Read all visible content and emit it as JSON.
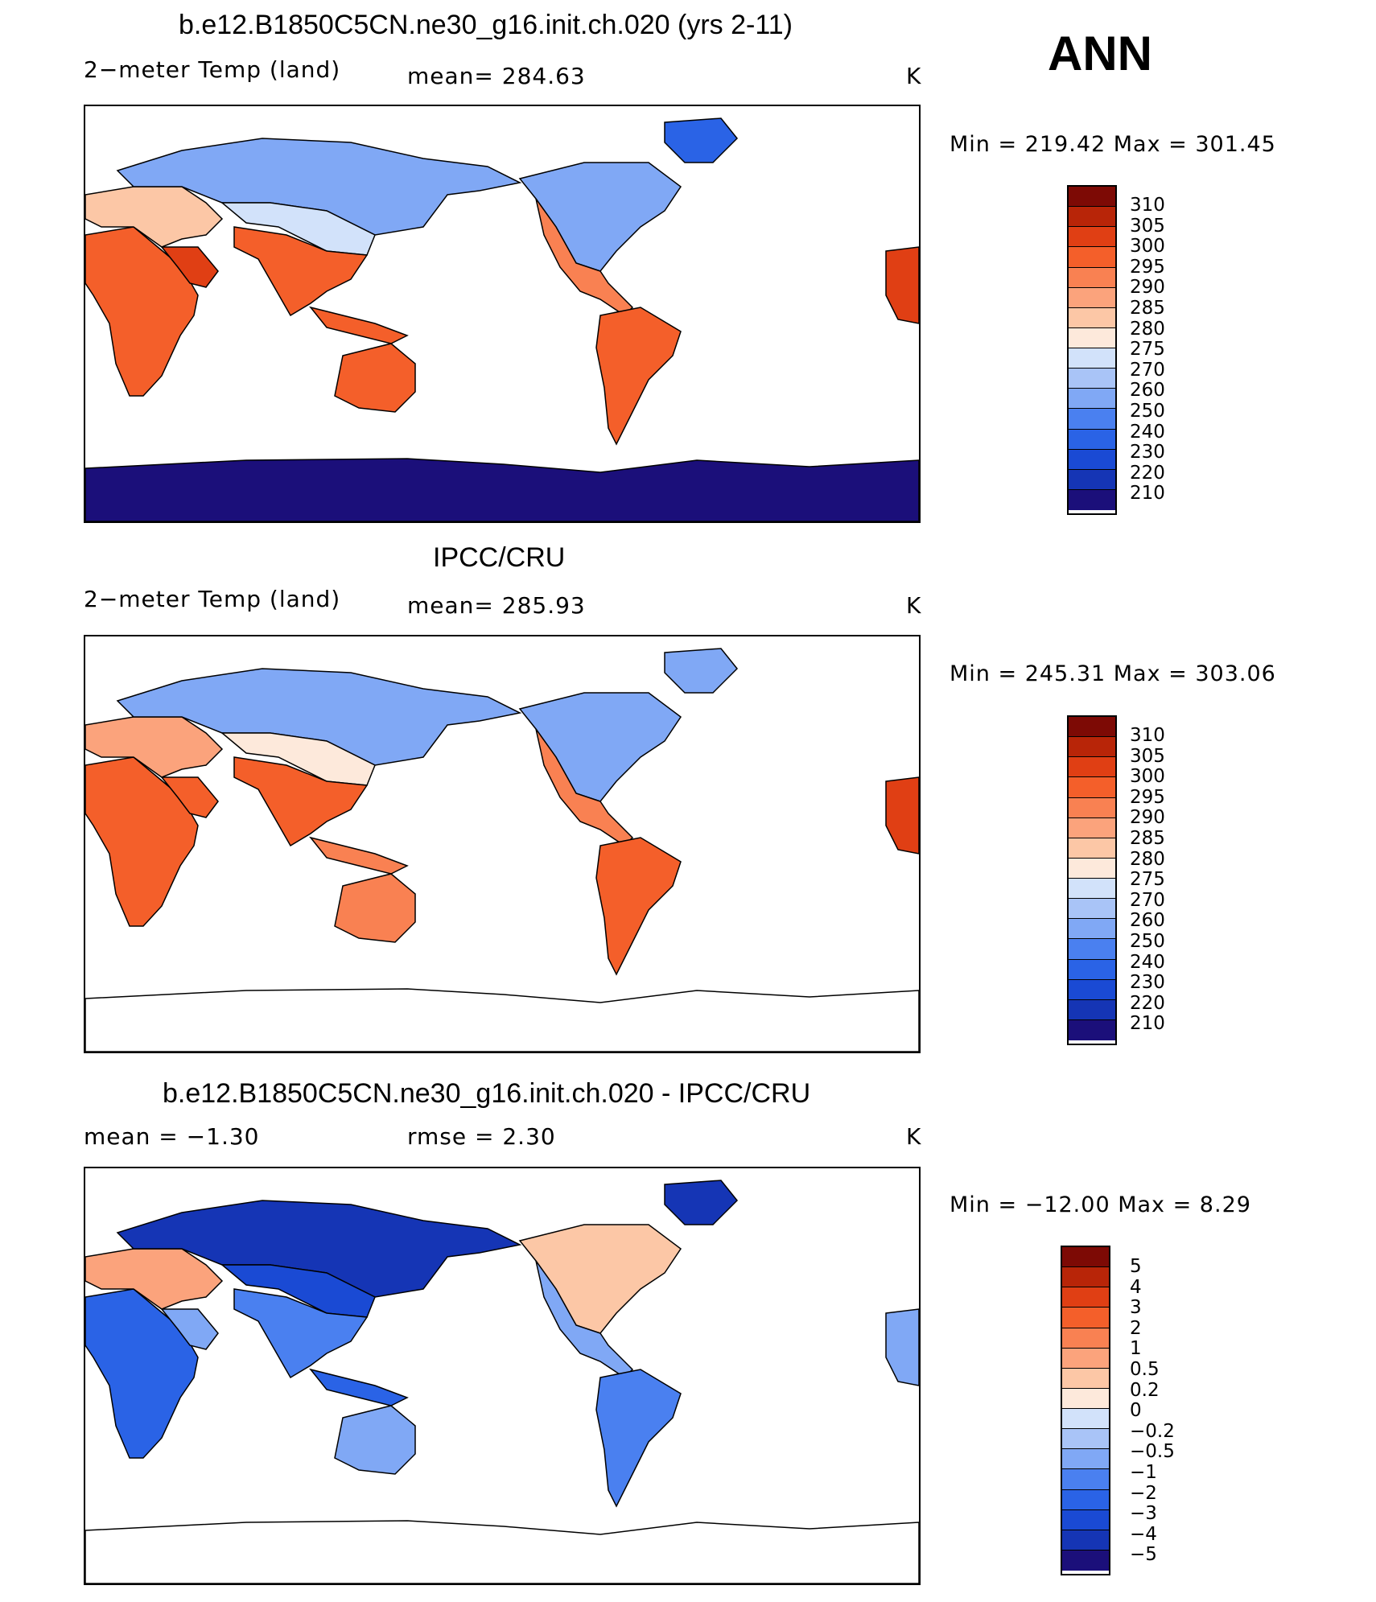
{
  "season": "ANN",
  "colors": {
    "abs_scale": [
      "#1b0f7a",
      "#1535b5",
      "#1a4ad4",
      "#2a63e6",
      "#4a80f0",
      "#80a8f5",
      "#a9c4f7",
      "#d2e2fa",
      "#fde9db",
      "#fcc7a6",
      "#fba37c",
      "#f98152",
      "#f45f2a",
      "#e03f14",
      "#b82508",
      "#7d0a05"
    ],
    "diff_scale": [
      "#1b0f7a",
      "#1535b5",
      "#1a4ad4",
      "#2a63e6",
      "#4a80f0",
      "#80a8f5",
      "#a9c4f7",
      "#d2e2fa",
      "#fde9db",
      "#fcc7a6",
      "#fba37c",
      "#f98152",
      "#f45f2a",
      "#e03f14",
      "#b82508",
      "#7d0a05"
    ]
  },
  "panels": [
    {
      "title": "b.e12.B1850C5CN.ne30_g16.init.ch.020 (yrs 2-11)",
      "left_label": "2−meter Temp (land)",
      "mid_label": "mean=  284.63",
      "units": "K",
      "minmax": "Min  =  219.42  Max  =  301.45",
      "colorbar_labels": [
        "310",
        "305",
        "300",
        "295",
        "290",
        "285",
        "280",
        "275",
        "270",
        "260",
        "250",
        "240",
        "230",
        "220",
        "210"
      ],
      "style": "model"
    },
    {
      "title": "IPCC/CRU",
      "left_label": "2−meter Temp (land)",
      "mid_label": "mean=  285.93",
      "units": "K",
      "minmax": "Min  =  245.31  Max  =  303.06",
      "colorbar_labels": [
        "310",
        "305",
        "300",
        "295",
        "290",
        "285",
        "280",
        "275",
        "270",
        "260",
        "250",
        "240",
        "230",
        "220",
        "210"
      ],
      "style": "obs"
    },
    {
      "title": "b.e12.B1850C5CN.ne30_g16.init.ch.020 - IPCC/CRU",
      "left_label": "mean  =     −1.30",
      "mid_label": "rmse  =      2.30",
      "units": "K",
      "minmax": "Min  =  −12.00  Max  =       8.29",
      "colorbar_labels": [
        "5",
        "4",
        "3",
        "2",
        "1",
        "0.5",
        "0.2",
        "0",
        "−0.2",
        "−0.5",
        "−1",
        "−2",
        "−3",
        "−4",
        "−5"
      ],
      "style": "diff"
    }
  ]
}
